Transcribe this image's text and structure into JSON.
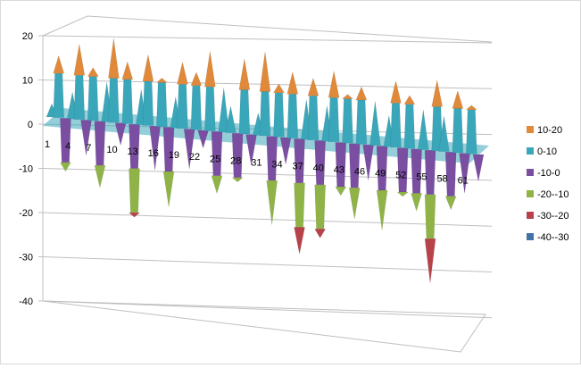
{
  "chart_data": {
    "type": "surface-3d",
    "title": "",
    "xlabel": "",
    "ylabel": "",
    "ylim": [
      -40,
      20
    ],
    "y_ticks": [
      "20",
      "10",
      "0",
      "-10",
      "-20",
      "-30",
      "-40"
    ],
    "x_tick_labels": [
      "1",
      "4",
      "7",
      "10",
      "13",
      "16",
      "19",
      "22",
      "25",
      "28",
      "31",
      "34",
      "37",
      "40",
      "43",
      "46",
      "49",
      "52",
      "55",
      "58",
      "61"
    ],
    "n_points": 63,
    "grid": true,
    "legend_position": "right",
    "legend": [
      {
        "label": "10-20",
        "color": "#e0893a"
      },
      {
        "label": "0-10",
        "color": "#3aa6b9"
      },
      {
        "label": "-10-0",
        "color": "#7a4ea0"
      },
      {
        "label": "-20--10",
        "color": "#8fb347"
      },
      {
        "label": "-30--20",
        "color": "#b8424a"
      },
      {
        "label": "-40--30",
        "color": "#4472a8"
      }
    ],
    "peaks": [
      3,
      14,
      -12,
      6,
      17,
      -8,
      12,
      -15,
      9,
      19,
      -5,
      14,
      -21,
      8,
      16,
      -10,
      11,
      -18,
      7,
      15,
      -9,
      13,
      -4,
      18,
      -14,
      10,
      6,
      -11,
      17,
      -7,
      5,
      19,
      -20,
      12,
      -6,
      15,
      -26,
      9,
      14,
      -22,
      8,
      16,
      -12,
      11,
      -17,
      13,
      -8,
      10,
      -19,
      7,
      15,
      -11,
      12,
      -14,
      9,
      -30,
      16,
      8,
      -13,
      14,
      -9,
      11,
      -6
    ]
  }
}
